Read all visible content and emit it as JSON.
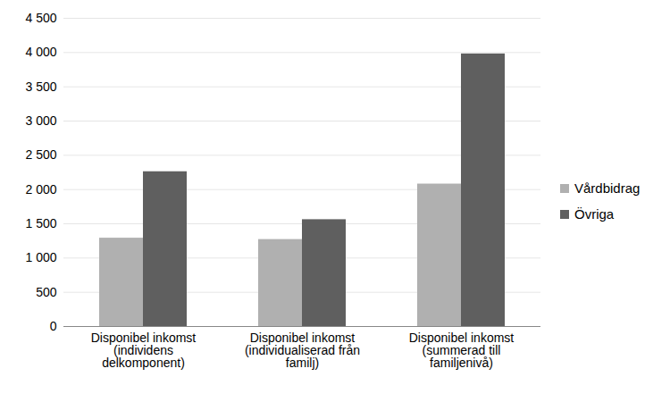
{
  "chart_data": {
    "type": "bar",
    "categories": [
      "Disponibel inkomst\n(individens\ndelkomponent)",
      "Disponibel inkomst\n(individualiserad från\nfamilj)",
      "Disponibel inkomst\n(summerad till\nfamiljenivå)"
    ],
    "series": [
      {
        "name": "Vårdbidrag",
        "color": "#b0b0b0",
        "values": [
          1290,
          1270,
          2080
        ]
      },
      {
        "name": "Övriga",
        "color": "#5f5f5f",
        "values": [
          2260,
          1560,
          3980
        ]
      }
    ],
    "ylim": [
      0,
      4500
    ],
    "yticks": [
      0,
      500,
      {
        "value": 1000,
        "label": "1 000"
      },
      {
        "value": 1500,
        "label": "1 500"
      },
      {
        "value": 2000,
        "label": "2 000"
      },
      {
        "value": 2500,
        "label": "2 500"
      },
      {
        "value": 3000,
        "label": "3 000"
      },
      {
        "value": 3500,
        "label": "3 500"
      },
      {
        "value": 4000,
        "label": "4 000"
      },
      {
        "value": 4500,
        "label": "4 500"
      }
    ],
    "grid": true,
    "legend": "right"
  }
}
